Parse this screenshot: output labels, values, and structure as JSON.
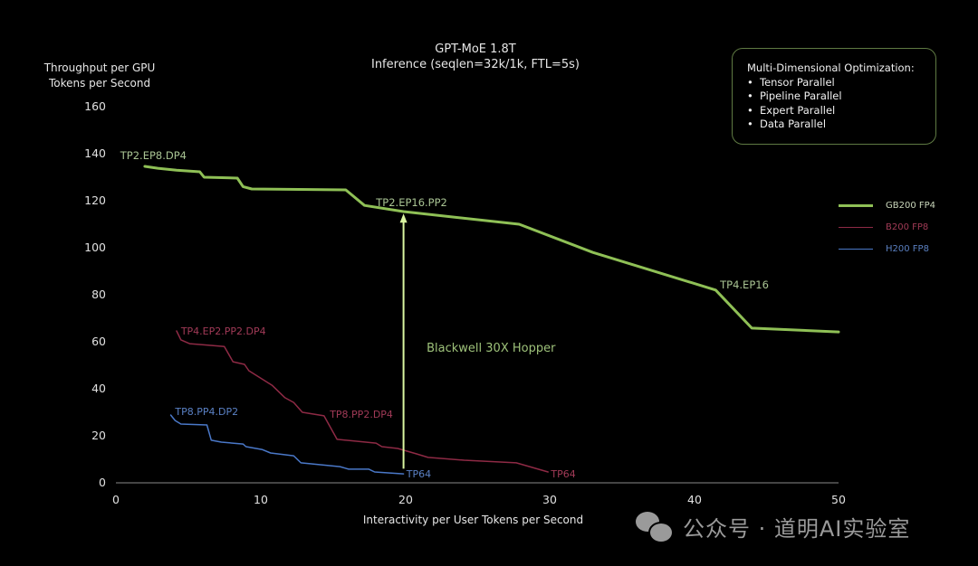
{
  "chart_data": {
    "type": "line",
    "title": "GPT-MoE 1.8T",
    "subtitle": "Inference (seqlen=32k/1k, FTL=5s)",
    "xlabel": "Interactivity per User Tokens per Second",
    "ylabel_line1": "Throughput per GPU",
    "ylabel_line2": "Tokens per Second",
    "xlim": [
      0,
      50
    ],
    "ylim": [
      0,
      160
    ],
    "xticks": [
      "0",
      "10",
      "20",
      "30",
      "40",
      "50"
    ],
    "yticks": [
      "160",
      "140",
      "120",
      "100",
      "80",
      "60",
      "40",
      "20",
      "0"
    ],
    "grid": false,
    "legend_position": "right",
    "series": [
      {
        "name": "GB200 FP4",
        "color": "#8fc056",
        "stroke_width": 3,
        "points": [
          [
            2.0,
            134.6
          ],
          [
            2.9,
            133.8
          ],
          [
            4.2,
            133.0
          ],
          [
            5.8,
            132.3
          ],
          [
            6.1,
            130.0
          ],
          [
            8.4,
            129.6
          ],
          [
            8.8,
            126.0
          ],
          [
            9.4,
            125.0
          ],
          [
            15.9,
            124.6
          ],
          [
            17.2,
            118.0
          ],
          [
            19.9,
            115.4
          ],
          [
            27.9,
            110.0
          ],
          [
            33.0,
            98.0
          ],
          [
            41.5,
            82.0
          ],
          [
            44.0,
            65.8
          ],
          [
            50.0,
            64.2
          ]
        ]
      },
      {
        "name": "B200 FP8",
        "color": "#8e2a45",
        "stroke_width": 1.5,
        "points": [
          [
            4.2,
            64.6
          ],
          [
            4.5,
            60.8
          ],
          [
            5.1,
            59.2
          ],
          [
            7.5,
            58.0
          ],
          [
            8.1,
            51.5
          ],
          [
            8.9,
            50.4
          ],
          [
            9.2,
            47.7
          ],
          [
            10.8,
            41.5
          ],
          [
            11.7,
            36.2
          ],
          [
            12.3,
            34.2
          ],
          [
            12.9,
            30.0
          ],
          [
            14.4,
            28.5
          ],
          [
            15.3,
            18.5
          ],
          [
            18.0,
            16.9
          ],
          [
            18.4,
            15.4
          ],
          [
            19.5,
            14.6
          ],
          [
            20.8,
            12.3
          ],
          [
            21.6,
            10.8
          ],
          [
            24.1,
            9.6
          ],
          [
            27.7,
            8.5
          ],
          [
            29.9,
            4.6
          ]
        ]
      },
      {
        "name": "H200 FP8",
        "color": "#4a78c8",
        "stroke_width": 1.5,
        "points": [
          [
            3.8,
            28.8
          ],
          [
            4.1,
            26.5
          ],
          [
            4.5,
            25.0
          ],
          [
            6.3,
            24.6
          ],
          [
            6.6,
            18.1
          ],
          [
            7.3,
            17.3
          ],
          [
            8.8,
            16.5
          ],
          [
            9.0,
            15.4
          ],
          [
            10.1,
            14.2
          ],
          [
            10.7,
            12.7
          ],
          [
            12.3,
            11.5
          ],
          [
            12.8,
            8.5
          ],
          [
            15.5,
            6.9
          ],
          [
            16.1,
            5.8
          ],
          [
            17.5,
            5.8
          ],
          [
            17.9,
            4.6
          ],
          [
            19.9,
            3.8
          ]
        ]
      }
    ],
    "annotations": [
      {
        "text": "TP2.EP8.DP4",
        "x": 0.3,
        "y": 139,
        "series": "GB200 FP4"
      },
      {
        "text": "TP2.EP16.PP2",
        "x": 18.0,
        "y": 119,
        "series": "GB200 FP4"
      },
      {
        "text": "TP4.EP16",
        "x": 41.8,
        "y": 84,
        "series": "GB200 FP4"
      },
      {
        "text": "TP4.EP2.PP2.DP4",
        "x": 4.5,
        "y": 64,
        "series": "B200 FP8"
      },
      {
        "text": "TP8.PP2.DP4",
        "x": 14.8,
        "y": 28.5,
        "series": "B200 FP8"
      },
      {
        "text": "TP64",
        "x": 30.1,
        "y": 3.2,
        "series": "B200 FP8"
      },
      {
        "text": "TP8.PP4.DP2",
        "x": 4.1,
        "y": 29.5,
        "series": "H200 FP8"
      },
      {
        "text": "TP64",
        "x": 20.1,
        "y": 3.2,
        "series": "H200 FP8"
      },
      {
        "text": "Blackwell 30X Hopper",
        "x": 21.5,
        "y": 57,
        "series": "arrow"
      }
    ],
    "arrow": {
      "x": 19.9,
      "y_from": 6,
      "y_to": 114.5,
      "color": "#d9f5a0",
      "label": "Blackwell 30X Hopper"
    }
  },
  "info_box": {
    "heading": "Multi-Dimensional Optimization:",
    "items": [
      "Tensor Parallel",
      "Pipeline Parallel",
      "Expert Parallel",
      "Data Parallel"
    ],
    "border_color": "#5f7a43"
  },
  "legend": [
    {
      "label": "GB200 FP4",
      "color": "#8fc056",
      "text_color": "#c9d6ba"
    },
    {
      "label": "B200 FP8",
      "color": "#8e2a45",
      "text_color": "#a03a55"
    },
    {
      "label": "H200 FP8",
      "color": "#4a78c8",
      "text_color": "#5a7fc0"
    }
  ],
  "watermark": {
    "text": "公众号 · 道明AI实验室"
  }
}
